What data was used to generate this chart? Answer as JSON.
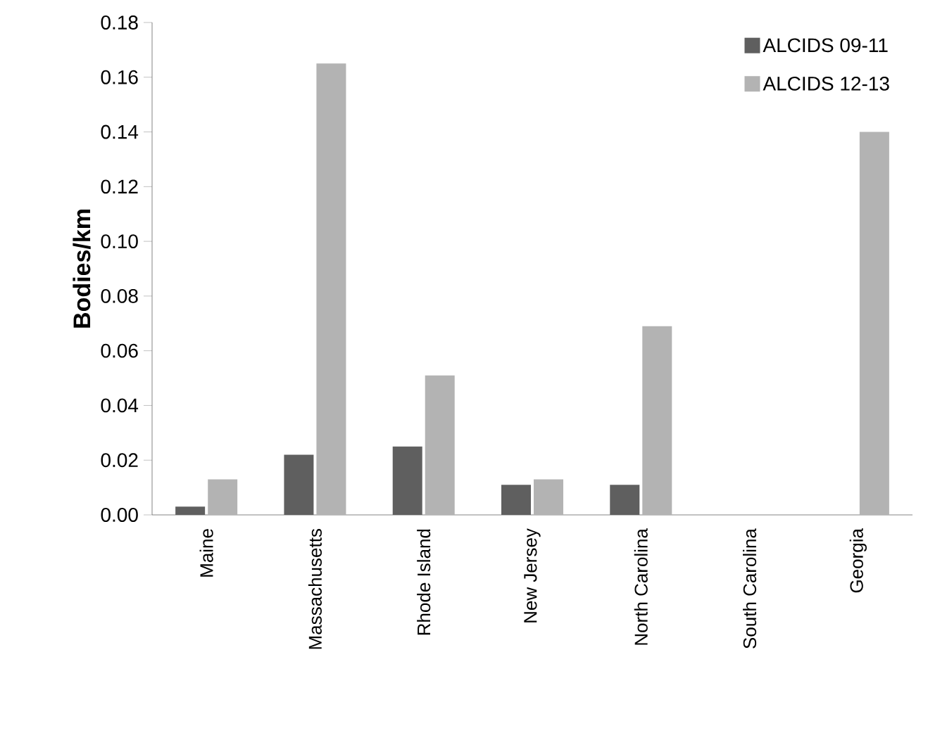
{
  "chart_data": {
    "type": "bar",
    "ylabel": "Bodies/km",
    "categories": [
      "Maine",
      "Massachusetts",
      "Rhode Island",
      "New Jersey",
      "North Carolina",
      "South Carolina",
      "Georgia"
    ],
    "series": [
      {
        "name": "ALCIDS 09-11",
        "color": "#5f5f5f",
        "values": [
          0.003,
          0.022,
          0.025,
          0.011,
          0.011,
          0,
          0
        ]
      },
      {
        "name": "ALCIDS 12-13",
        "color": "#b3b3b3",
        "values": [
          0.013,
          0.165,
          0.051,
          0.013,
          0.069,
          0,
          0.14
        ]
      }
    ],
    "ylim": [
      0,
      0.18
    ],
    "yticks": [
      {
        "value": 0,
        "label": "0.00"
      },
      0.02,
      0.04,
      0.06,
      0.08,
      {
        "value": 0.1,
        "label": "0.10"
      },
      0.12,
      0.14,
      0.16,
      0.18
    ],
    "grid": false,
    "legend": "top right"
  }
}
